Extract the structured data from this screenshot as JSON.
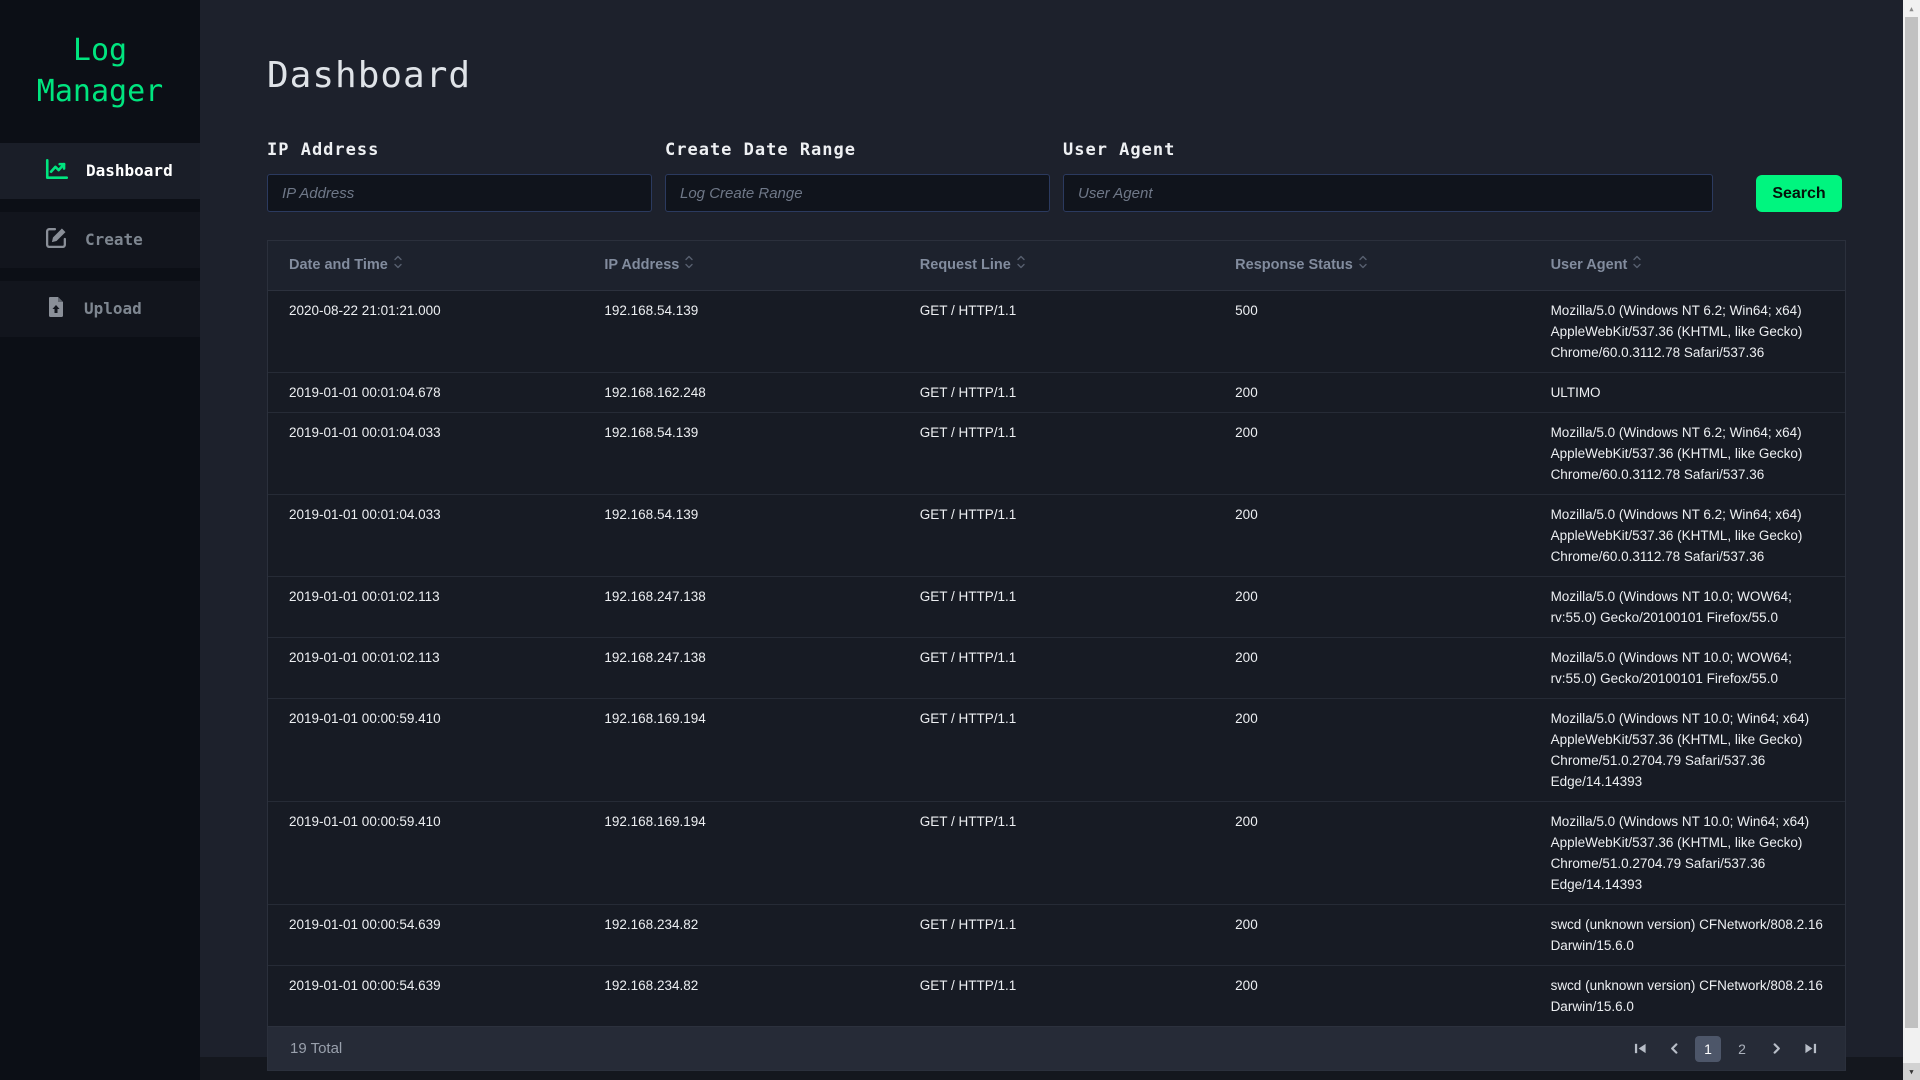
{
  "colors": {
    "accent_green": "#00e57f",
    "button_green": "#00f57f",
    "sidebar_bg": "#0c0f16",
    "main_bg": "#1d212c",
    "row_bg": "#171b24",
    "footer_bg": "#262b37",
    "input_border": "#2b3a5f"
  },
  "app": {
    "title_line1": "Log",
    "title_line2": "Manager"
  },
  "sidebar": {
    "items": [
      {
        "label": "Dashboard",
        "icon": "chart-line-icon",
        "active": true
      },
      {
        "label": "Create",
        "icon": "pen-square-icon",
        "active": false
      },
      {
        "label": "Upload",
        "icon": "file-upload-icon",
        "active": false
      }
    ]
  },
  "page": {
    "title": "Dashboard"
  },
  "filters": [
    {
      "label": "IP Address",
      "placeholder": "IP Address",
      "width_class": "w-ip",
      "name": "ip-address-input"
    },
    {
      "label": "Create Date Range",
      "placeholder": "Log Create Range",
      "width_class": "w-date",
      "name": "create-date-range-input"
    },
    {
      "label": "User Agent",
      "placeholder": "User Agent",
      "width_class": "w-ua",
      "name": "user-agent-input"
    }
  ],
  "search_button_label": "Search",
  "table": {
    "columns": [
      "Date and Time",
      "IP Address",
      "Request Line",
      "Response Status",
      "User Agent"
    ],
    "rows": [
      {
        "datetime": "2020-08-22 21:01:21.000",
        "ip": "192.168.54.139",
        "request": "GET / HTTP/1.1",
        "status": "500",
        "user_agent": "Mozilla/5.0 (Windows NT 6.2; Win64; x64) AppleWebKit/537.36 (KHTML, like Gecko) Chrome/60.0.3112.78 Safari/537.36"
      },
      {
        "datetime": "2019-01-01 00:01:04.678",
        "ip": "192.168.162.248",
        "request": "GET / HTTP/1.1",
        "status": "200",
        "user_agent": "ULTIMO"
      },
      {
        "datetime": "2019-01-01 00:01:04.033",
        "ip": "192.168.54.139",
        "request": "GET / HTTP/1.1",
        "status": "200",
        "user_agent": "Mozilla/5.0 (Windows NT 6.2; Win64; x64) AppleWebKit/537.36 (KHTML, like Gecko) Chrome/60.0.3112.78 Safari/537.36"
      },
      {
        "datetime": "2019-01-01 00:01:04.033",
        "ip": "192.168.54.139",
        "request": "GET / HTTP/1.1",
        "status": "200",
        "user_agent": "Mozilla/5.0 (Windows NT 6.2; Win64; x64) AppleWebKit/537.36 (KHTML, like Gecko) Chrome/60.0.3112.78 Safari/537.36"
      },
      {
        "datetime": "2019-01-01 00:01:02.113",
        "ip": "192.168.247.138",
        "request": "GET / HTTP/1.1",
        "status": "200",
        "user_agent": "Mozilla/5.0 (Windows NT 10.0; WOW64; rv:55.0) Gecko/20100101 Firefox/55.0"
      },
      {
        "datetime": "2019-01-01 00:01:02.113",
        "ip": "192.168.247.138",
        "request": "GET / HTTP/1.1",
        "status": "200",
        "user_agent": "Mozilla/5.0 (Windows NT 10.0; WOW64; rv:55.0) Gecko/20100101 Firefox/55.0"
      },
      {
        "datetime": "2019-01-01 00:00:59.410",
        "ip": "192.168.169.194",
        "request": "GET / HTTP/1.1",
        "status": "200",
        "user_agent": "Mozilla/5.0 (Windows NT 10.0; Win64; x64) AppleWebKit/537.36 (KHTML, like Gecko) Chrome/51.0.2704.79 Safari/537.36 Edge/14.14393"
      },
      {
        "datetime": "2019-01-01 00:00:59.410",
        "ip": "192.168.169.194",
        "request": "GET / HTTP/1.1",
        "status": "200",
        "user_agent": "Mozilla/5.0 (Windows NT 10.0; Win64; x64) AppleWebKit/537.36 (KHTML, like Gecko) Chrome/51.0.2704.79 Safari/537.36 Edge/14.14393"
      },
      {
        "datetime": "2019-01-01 00:00:54.639",
        "ip": "192.168.234.82",
        "request": "GET / HTTP/1.1",
        "status": "200",
        "user_agent": "swcd (unknown version) CFNetwork/808.2.16 Darwin/15.6.0"
      },
      {
        "datetime": "2019-01-01 00:00:54.639",
        "ip": "192.168.234.82",
        "request": "GET / HTTP/1.1",
        "status": "200",
        "user_agent": "swcd (unknown version) CFNetwork/808.2.16 Darwin/15.6.0"
      }
    ]
  },
  "footer": {
    "total": "19 Total",
    "pages": [
      {
        "label": "1",
        "active": true
      },
      {
        "label": "2",
        "active": false
      }
    ]
  }
}
